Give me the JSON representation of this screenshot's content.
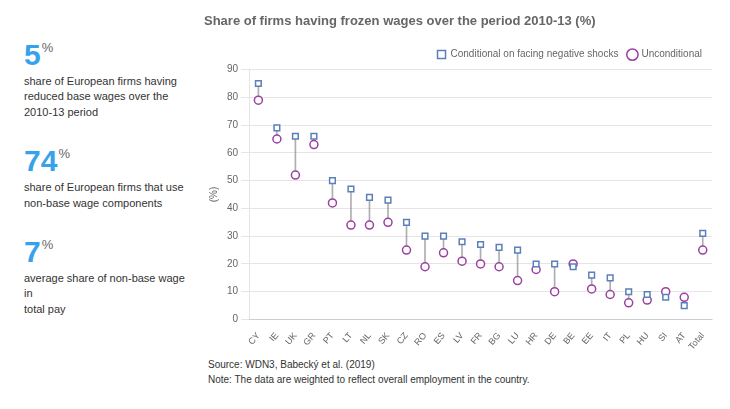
{
  "chart_data": {
    "type": "dot",
    "title": "Share of firms having frozen wages over the period 2010-13 (%)",
    "ylabel": "(%)",
    "categories": [
      "CY",
      "IE",
      "UK",
      "GR",
      "PT",
      "LT",
      "NL",
      "SK",
      "CZ",
      "RO",
      "ES",
      "LV",
      "FR",
      "BG",
      "LU",
      "HR",
      "DE",
      "BE",
      "EE",
      "IT",
      "PL",
      "HU",
      "SI",
      "AT",
      "Total"
    ],
    "series": [
      {
        "name": "Conditional on facing negative shocks",
        "color": "#5b7fba",
        "marker": "square",
        "values": [
          85,
          69,
          66,
          66,
          50,
          47,
          44,
          43,
          35,
          30,
          30,
          28,
          27,
          26,
          25,
          20,
          20,
          19,
          16,
          15,
          10,
          9,
          8,
          5,
          31
        ]
      },
      {
        "name": "Unconditional",
        "color": "#9b3fa0",
        "marker": "circle",
        "values": [
          79,
          65,
          52,
          63,
          42,
          34,
          34,
          35,
          25,
          19,
          24,
          21,
          20,
          19,
          14,
          18,
          10,
          20,
          11,
          9,
          6,
          7,
          10,
          8,
          25
        ]
      }
    ],
    "ylim": [
      0,
      90
    ],
    "yticks": [
      0,
      10,
      20,
      30,
      40,
      50,
      60,
      70,
      80,
      90
    ],
    "grid": true,
    "legend": "upper right",
    "annotations": [
      "5",
      "%",
      "share of European firms having\nreduced base wages over the\n2010-13 period",
      "74",
      "%",
      "share of European firms that use\nnon-base wage components",
      "7",
      "%",
      "average share of non-base wage in\ntotal pay",
      "Source: WDN3, Babecký et al. (2019)",
      "Note: The data are weighted to reflect overall employment in the country."
    ]
  }
}
